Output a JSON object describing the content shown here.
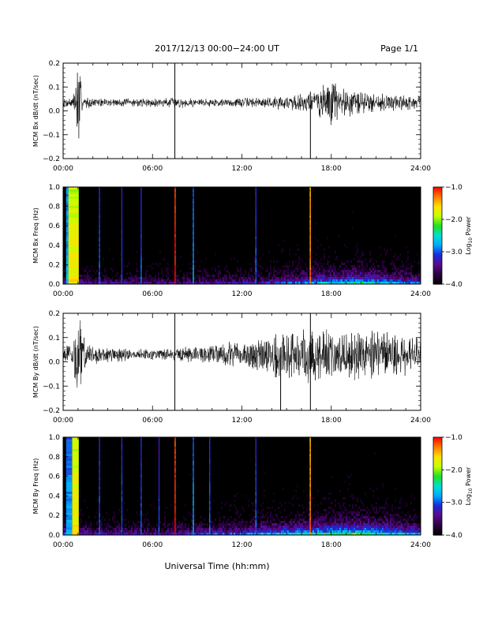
{
  "header": {
    "title": "2017/12/13  00:00−24:00 UT",
    "page_label": "Page 1/1"
  },
  "footer": {
    "xlabel": "Universal Time (hh:mm)"
  },
  "colorbar": {
    "label": "Log",
    "label_sub": "10",
    "label_tail": " Power",
    "ticks": [
      "−1.0",
      "−2.0",
      "−3.0",
      "−4.0"
    ],
    "tick_values": [
      -1.0,
      -2.0,
      -3.0,
      -4.0
    ],
    "range": [
      -4.0,
      -1.0
    ],
    "colors": [
      "#000000",
      "#2a0040",
      "#5a0a8a",
      "#1a2ad8",
      "#00a8ff",
      "#00e0d0",
      "#20e020",
      "#c8ff00",
      "#ffe000",
      "#ff7a00",
      "#ff0000"
    ]
  },
  "colors": {
    "trace": "#000000",
    "background": "#000000"
  },
  "chart_data": [
    {
      "type": "line",
      "ylabel": "MCM Bx dB/dt (nT/sec)",
      "xticks": [
        "00:00",
        "06:00",
        "12:00",
        "18:00",
        "24:00"
      ],
      "xlim": [
        0,
        24
      ],
      "ylim": [
        -0.2,
        0.2
      ],
      "yticks": [
        "0.2",
        "0.1",
        "0.0",
        "−0.1",
        "−0.2"
      ],
      "ytick_values": [
        0.2,
        0.1,
        0.0,
        -0.1,
        -0.2
      ],
      "baseline": 0.035,
      "envelope": [
        [
          0.0,
          0.02
        ],
        [
          0.7,
          0.03
        ],
        [
          0.9,
          0.2
        ],
        [
          1.1,
          0.2
        ],
        [
          1.3,
          0.03
        ],
        [
          2.0,
          0.02
        ],
        [
          4.0,
          0.02
        ],
        [
          6.0,
          0.02
        ],
        [
          7.5,
          0.025
        ],
        [
          9.0,
          0.02
        ],
        [
          11.0,
          0.02
        ],
        [
          13.0,
          0.025
        ],
        [
          14.5,
          0.03
        ],
        [
          15.5,
          0.04
        ],
        [
          16.5,
          0.05
        ],
        [
          17.5,
          0.08
        ],
        [
          18.0,
          0.12
        ],
        [
          18.5,
          0.08
        ],
        [
          19.5,
          0.06
        ],
        [
          20.5,
          0.05
        ],
        [
          22.0,
          0.04
        ],
        [
          24.0,
          0.03
        ]
      ],
      "spikes": [
        [
          7.5,
          -0.2
        ],
        [
          7.5,
          0.2
        ],
        [
          16.6,
          -0.2
        ],
        [
          16.6,
          0.08
        ]
      ]
    },
    {
      "type": "heatmap",
      "ylabel": "MCM Bx Freq (Hz)",
      "xticks": [
        "00:00",
        "06:00",
        "12:00",
        "18:00",
        "24:00"
      ],
      "xlim": [
        0,
        24
      ],
      "ylim": [
        0.0,
        1.0
      ],
      "yticks": [
        "1.0",
        "0.8",
        "0.6",
        "0.4",
        "0.2",
        "0.0"
      ],
      "ytick_values": [
        1.0,
        0.8,
        0.6,
        0.4,
        0.2,
        0.0
      ],
      "background_log_power": -4.0,
      "low_freq_activity": [
        [
          0.0,
          0.5
        ],
        [
          2.0,
          0.4
        ],
        [
          6.0,
          0.35
        ],
        [
          10.0,
          0.4
        ],
        [
          13.0,
          0.45
        ],
        [
          15.0,
          0.55
        ],
        [
          16.5,
          0.7
        ],
        [
          18.0,
          0.75
        ],
        [
          20.0,
          0.85
        ],
        [
          22.0,
          0.7
        ],
        [
          24.0,
          0.55
        ]
      ],
      "broadband_bands": [
        [
          0.35,
          1.05,
          -1.9
        ],
        [
          0.2,
          0.35,
          -2.9
        ],
        [
          2.4,
          2.45,
          -3.2
        ],
        [
          3.9,
          3.95,
          -3.3
        ],
        [
          5.2,
          5.25,
          -3.2
        ],
        [
          7.48,
          7.56,
          -1.2
        ],
        [
          8.7,
          8.75,
          -3.0
        ],
        [
          12.9,
          12.95,
          -3.2
        ],
        [
          16.55,
          16.62,
          -1.5
        ]
      ]
    },
    {
      "type": "line",
      "ylabel": "MCM By dB/dt (nT/sec)",
      "xticks": [
        "00:00",
        "06:00",
        "12:00",
        "18:00",
        "24:00"
      ],
      "xlim": [
        0,
        24
      ],
      "ylim": [
        -0.2,
        0.2
      ],
      "yticks": [
        "0.2",
        "0.1",
        "0.0",
        "−0.1",
        "−0.2"
      ],
      "ytick_values": [
        0.2,
        0.1,
        0.0,
        -0.1,
        -0.2
      ],
      "baseline": 0.03,
      "envelope": [
        [
          0.0,
          0.03
        ],
        [
          0.7,
          0.06
        ],
        [
          0.9,
          0.2
        ],
        [
          1.2,
          0.2
        ],
        [
          1.5,
          0.06
        ],
        [
          2.5,
          0.04
        ],
        [
          4.0,
          0.03
        ],
        [
          6.0,
          0.025
        ],
        [
          7.5,
          0.03
        ],
        [
          9.0,
          0.04
        ],
        [
          10.5,
          0.05
        ],
        [
          12.0,
          0.06
        ],
        [
          13.0,
          0.08
        ],
        [
          14.0,
          0.1
        ],
        [
          15.0,
          0.11
        ],
        [
          16.5,
          0.12
        ],
        [
          17.5,
          0.12
        ],
        [
          18.5,
          0.11
        ],
        [
          19.5,
          0.12
        ],
        [
          20.5,
          0.12
        ],
        [
          22.0,
          0.1
        ],
        [
          24.0,
          0.08
        ]
      ],
      "spikes": [
        [
          7.5,
          -0.2
        ],
        [
          7.5,
          0.2
        ],
        [
          14.6,
          -0.2
        ],
        [
          16.6,
          -0.2
        ],
        [
          16.6,
          0.2
        ]
      ]
    },
    {
      "type": "heatmap",
      "ylabel": "MCM By Freq (Hz)",
      "xticks": [
        "00:00",
        "06:00",
        "12:00",
        "18:00",
        "24:00"
      ],
      "xlim": [
        0,
        24
      ],
      "ylim": [
        0.0,
        1.0
      ],
      "yticks": [
        "1.0",
        "0.8",
        "0.6",
        "0.4",
        "0.2",
        "0.0"
      ],
      "ytick_values": [
        1.0,
        0.8,
        0.6,
        0.4,
        0.2,
        0.0
      ],
      "background_log_power": -4.0,
      "low_freq_activity": [
        [
          0.0,
          0.6
        ],
        [
          2.0,
          0.45
        ],
        [
          6.0,
          0.4
        ],
        [
          9.0,
          0.5
        ],
        [
          12.0,
          0.6
        ],
        [
          14.0,
          0.7
        ],
        [
          16.5,
          0.85
        ],
        [
          18.0,
          0.9
        ],
        [
          20.0,
          0.95
        ],
        [
          22.0,
          0.8
        ],
        [
          24.0,
          0.65
        ]
      ],
      "broadband_bands": [
        [
          0.6,
          1.05,
          -1.9
        ],
        [
          0.2,
          0.6,
          -3.0
        ],
        [
          2.4,
          2.45,
          -3.2
        ],
        [
          3.9,
          3.95,
          -3.2
        ],
        [
          5.2,
          5.25,
          -3.2
        ],
        [
          6.4,
          6.45,
          -3.3
        ],
        [
          7.48,
          7.56,
          -1.2
        ],
        [
          8.7,
          8.75,
          -3.0
        ],
        [
          9.8,
          9.85,
          -3.2
        ],
        [
          12.9,
          12.95,
          -3.2
        ],
        [
          16.55,
          16.62,
          -1.5
        ]
      ]
    }
  ]
}
